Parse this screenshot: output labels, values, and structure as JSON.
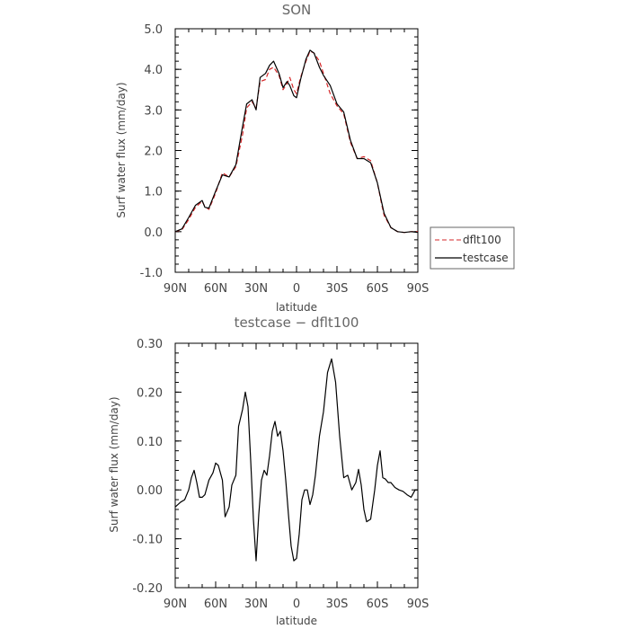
{
  "chart_data": [
    {
      "type": "line",
      "title": "SON",
      "xlabel": "latitude",
      "ylabel": "Surf water flux (mm/day)",
      "x_ticks": [
        "90N",
        "60N",
        "30N",
        "0",
        "30S",
        "60S",
        "90S"
      ],
      "y_ticks": [
        "5.0",
        "4.0",
        "3.0",
        "2.0",
        "1.0",
        "0.0",
        "-1.0"
      ],
      "xlim": [
        90,
        -90
      ],
      "ylim": [
        -1.0,
        5.0
      ],
      "legend": {
        "placement": "right",
        "entries": [
          "dflt100",
          "testcase"
        ]
      },
      "series": [
        {
          "name": "dflt100",
          "color": "#d62728",
          "dash": true,
          "x": [
            90,
            85,
            80,
            75,
            70,
            68,
            65,
            60,
            55,
            50,
            45,
            40,
            37,
            33,
            30,
            27,
            23,
            20,
            17,
            13,
            10,
            7,
            5,
            2,
            0,
            -3,
            -7,
            -10,
            -13,
            -17,
            -20,
            -25,
            -30,
            -35,
            -40,
            -45,
            -50,
            -55,
            -60,
            -63,
            -65,
            -70,
            -75,
            -80,
            -85,
            -90
          ],
          "y": [
            0.0,
            0.05,
            0.3,
            0.6,
            0.75,
            0.62,
            0.55,
            0.95,
            1.45,
            1.35,
            1.6,
            2.4,
            3.05,
            3.2,
            3.05,
            3.7,
            3.75,
            4.0,
            4.05,
            3.85,
            3.5,
            3.65,
            3.8,
            3.5,
            3.4,
            3.8,
            4.2,
            4.45,
            4.4,
            4.2,
            3.9,
            3.4,
            3.1,
            2.9,
            2.2,
            1.8,
            1.85,
            1.75,
            1.2,
            0.7,
            0.4,
            0.1,
            0.0,
            -0.02,
            0.0,
            0.0
          ]
        },
        {
          "name": "testcase",
          "color": "#000000",
          "dash": false,
          "x": [
            90,
            85,
            80,
            75,
            70,
            68,
            65,
            60,
            55,
            50,
            45,
            40,
            37,
            33,
            30,
            27,
            23,
            20,
            17,
            13,
            10,
            7,
            5,
            2,
            0,
            -3,
            -7,
            -10,
            -13,
            -17,
            -20,
            -25,
            -30,
            -35,
            -40,
            -45,
            -50,
            -55,
            -60,
            -63,
            -65,
            -70,
            -75,
            -80,
            -85,
            -90
          ],
          "y": [
            0.0,
            0.07,
            0.35,
            0.65,
            0.77,
            0.6,
            0.58,
            1.0,
            1.4,
            1.35,
            1.65,
            2.6,
            3.15,
            3.25,
            3.0,
            3.8,
            3.9,
            4.1,
            4.2,
            3.9,
            3.55,
            3.7,
            3.6,
            3.35,
            3.3,
            3.75,
            4.25,
            4.47,
            4.4,
            4.05,
            3.85,
            3.6,
            3.15,
            2.95,
            2.25,
            1.8,
            1.8,
            1.7,
            1.2,
            0.75,
            0.45,
            0.1,
            0.0,
            -0.02,
            0.0,
            -0.02
          ]
        }
      ]
    },
    {
      "type": "line",
      "title": "testcase − dflt100",
      "xlabel": "latitude",
      "ylabel": "Surf water flux (mm/day)",
      "x_ticks": [
        "90N",
        "60N",
        "30N",
        "0",
        "30S",
        "60S",
        "90S"
      ],
      "y_ticks": [
        "0.30",
        "0.20",
        "0.10",
        "0.00",
        "-0.10",
        "-0.20"
      ],
      "xlim": [
        90,
        -90
      ],
      "ylim": [
        -0.2,
        0.3
      ],
      "series": [
        {
          "name": "",
          "color": "#000000",
          "dash": false,
          "x": [
            90,
            86,
            83,
            80,
            78,
            76,
            74,
            72,
            70,
            68,
            65,
            62,
            60,
            58,
            55,
            53,
            50,
            48,
            45,
            43,
            40,
            38,
            36,
            34,
            32,
            30,
            28,
            26,
            24,
            22,
            20,
            18,
            16,
            14,
            12,
            10,
            8,
            6,
            4,
            2,
            0,
            -2,
            -4,
            -6,
            -8,
            -10,
            -12,
            -14,
            -17,
            -20,
            -23,
            -26,
            -29,
            -32,
            -35,
            -38,
            -41,
            -44,
            -46,
            -48,
            -50,
            -52,
            -55,
            -58,
            -60,
            -62,
            -64,
            -66,
            -68,
            -70,
            -73,
            -76,
            -79,
            -82,
            -85,
            -88,
            -90
          ],
          "y": [
            -0.035,
            -0.025,
            -0.02,
            0.0,
            0.025,
            0.04,
            0.015,
            -0.015,
            -0.015,
            -0.01,
            0.02,
            0.035,
            0.055,
            0.05,
            0.02,
            -0.055,
            -0.035,
            0.01,
            0.03,
            0.13,
            0.165,
            0.2,
            0.17,
            0.06,
            -0.06,
            -0.145,
            -0.05,
            0.02,
            0.04,
            0.03,
            0.07,
            0.12,
            0.14,
            0.11,
            0.12,
            0.08,
            0.02,
            -0.05,
            -0.115,
            -0.145,
            -0.14,
            -0.09,
            -0.02,
            0.0,
            0.0,
            -0.03,
            -0.01,
            0.03,
            0.11,
            0.16,
            0.24,
            0.268,
            0.22,
            0.11,
            0.025,
            0.03,
            0.0,
            0.015,
            0.042,
            0.01,
            -0.04,
            -0.065,
            -0.06,
            0.0,
            0.05,
            0.08,
            0.025,
            0.022,
            0.015,
            0.015,
            0.005,
            0.0,
            -0.003,
            -0.01,
            -0.015,
            0.0,
            0.0
          ]
        }
      ]
    }
  ]
}
